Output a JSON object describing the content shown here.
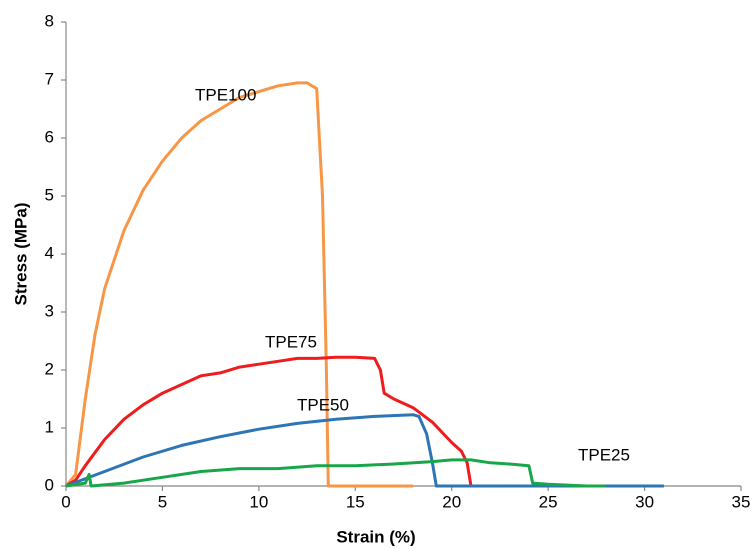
{
  "chart_data": {
    "type": "line",
    "xlabel": "Strain (%)",
    "ylabel": "Stress (MPa)",
    "xlim": [
      0,
      35
    ],
    "xticks": [
      0,
      5,
      10,
      15,
      20,
      25,
      30,
      35
    ],
    "ylim": [
      0,
      8
    ],
    "yticks": [
      0,
      1,
      2,
      3,
      4,
      5,
      6,
      7,
      8
    ],
    "series": [
      {
        "name": "TPE100",
        "color": "#f79646",
        "x": [
          0,
          0.5,
          1,
          1.5,
          2,
          3,
          4,
          5,
          6,
          7,
          8,
          9,
          10,
          11,
          12,
          12.5,
          13,
          13.3,
          13.5,
          13.6,
          15,
          18
        ],
        "values": [
          0,
          0.2,
          1.5,
          2.6,
          3.4,
          4.4,
          5.1,
          5.6,
          6.0,
          6.3,
          6.5,
          6.7,
          6.8,
          6.9,
          6.95,
          6.95,
          6.85,
          5,
          2,
          0,
          0,
          0
        ]
      },
      {
        "name": "TPE75",
        "color": "#ee1c1c",
        "x": [
          0,
          0.5,
          1,
          2,
          3,
          4,
          5,
          6,
          7,
          8,
          9,
          10,
          11,
          12,
          13,
          14,
          15,
          16,
          16.3,
          16.5,
          17,
          18,
          19,
          20,
          20.5,
          20.8,
          21
        ],
        "values": [
          0,
          0.1,
          0.35,
          0.8,
          1.15,
          1.4,
          1.6,
          1.75,
          1.9,
          1.95,
          2.05,
          2.1,
          2.15,
          2.2,
          2.2,
          2.22,
          2.22,
          2.2,
          2.0,
          1.6,
          1.5,
          1.35,
          1.1,
          0.75,
          0.6,
          0.4,
          0
        ]
      },
      {
        "name": "TPE50",
        "color": "#2e75b6",
        "x": [
          0,
          2,
          4,
          6,
          8,
          10,
          12,
          14,
          16,
          18,
          18.3,
          18.7,
          19,
          19.2,
          25,
          31
        ],
        "values": [
          0,
          0.25,
          0.5,
          0.7,
          0.85,
          0.98,
          1.08,
          1.15,
          1.2,
          1.23,
          1.2,
          0.9,
          0.4,
          0,
          0,
          0
        ]
      },
      {
        "name": "TPE25",
        "color": "#17a64a",
        "x": [
          0,
          1,
          1.2,
          1.3,
          3,
          5,
          7,
          9,
          11,
          13,
          15,
          17,
          19,
          20,
          21,
          22,
          23,
          24,
          24.2,
          25,
          27,
          28
        ],
        "values": [
          0,
          0.05,
          0.2,
          0,
          0.05,
          0.15,
          0.25,
          0.3,
          0.3,
          0.35,
          0.35,
          0.38,
          0.42,
          0.45,
          0.45,
          0.4,
          0.38,
          0.35,
          0.05,
          0.03,
          0,
          0
        ]
      }
    ]
  }
}
